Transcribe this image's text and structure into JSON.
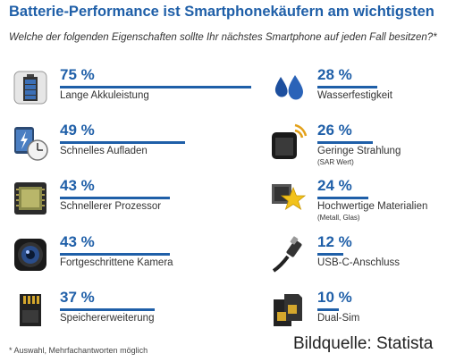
{
  "title": "Batterie-Performance ist Smartphonekäufern am wichtigsten",
  "subtitle": "Welche der folgenden Eigenschaften sollte Ihr nächstes Smartphone auf jeden Fall besitzen?*",
  "footnote": "* Auswahl, Mehrfachantworten möglich",
  "source": "Bildquelle: Statista",
  "colors": {
    "accent": "#1f5fa8",
    "text": "#333333"
  },
  "chart_data": {
    "type": "bar",
    "unit": "%",
    "xlim": [
      0,
      75
    ],
    "items": [
      {
        "label": "Lange Akkuleistung",
        "value": 75,
        "value_label": "75 %",
        "icon": "battery-icon"
      },
      {
        "label": "Schnelles Aufladen",
        "value": 49,
        "value_label": "49 %",
        "icon": "fast-charging-clock-icon"
      },
      {
        "label": "Schnellerer Prozessor",
        "value": 43,
        "value_label": "43 %",
        "icon": "processor-chip-icon"
      },
      {
        "label": "Fortgeschrittene Kamera",
        "value": 43,
        "value_label": "43 %",
        "icon": "camera-lens-icon"
      },
      {
        "label": "Speichererweiterung",
        "value": 37,
        "value_label": "37 %",
        "icon": "sd-card-icon"
      },
      {
        "label": "Wasserfestigkeit",
        "value": 28,
        "value_label": "28 %",
        "icon": "water-drops-icon"
      },
      {
        "label": "Geringe Strahlung",
        "sublabel": "(SAR Wert)",
        "value": 26,
        "value_label": "26 %",
        "icon": "radiation-signal-icon"
      },
      {
        "label": "Hochwertige Materialien",
        "sublabel": "(Metall, Glas)",
        "value": 24,
        "value_label": "24 %",
        "icon": "premium-material-star-icon"
      },
      {
        "label": "USB-C-Anschluss",
        "value": 12,
        "value_label": "12 %",
        "icon": "usb-c-cable-icon"
      },
      {
        "label": "Dual-Sim",
        "value": 10,
        "value_label": "10 %",
        "icon": "dual-sim-icon"
      }
    ]
  }
}
